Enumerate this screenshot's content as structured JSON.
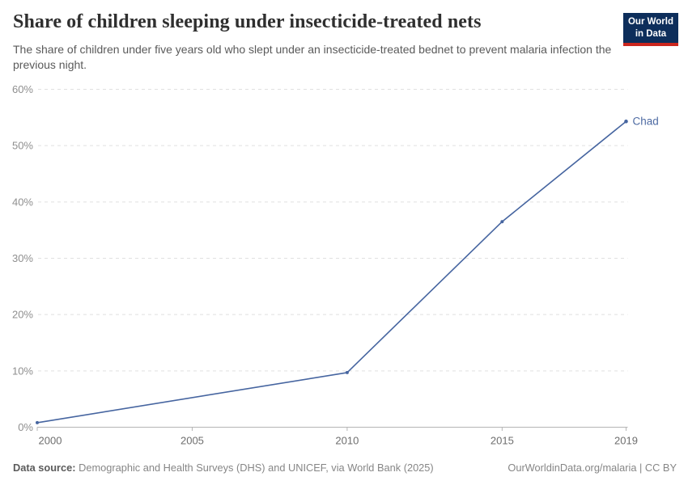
{
  "header": {
    "title": "Share of children sleeping under insecticide-treated nets",
    "subtitle": "The share of children under five years old who slept under an insecticide-treated bednet to prevent malaria infection the previous night.",
    "logo": {
      "line1": "Our World",
      "line2": "in Data"
    }
  },
  "chart_data": {
    "type": "line",
    "title": "Share of children sleeping under insecticide-treated nets",
    "series": [
      {
        "name": "Chad",
        "x": [
          2000,
          2010,
          2015,
          2019
        ],
        "values": [
          0.8,
          9.7,
          36.5,
          54.3
        ]
      }
    ],
    "end_label": "Chad",
    "x_ticks": [
      2000,
      2005,
      2010,
      2015,
      2019
    ],
    "y_ticks": [
      0,
      10,
      20,
      30,
      40,
      50,
      60
    ],
    "y_tick_suffix": "%",
    "xlim": [
      2000,
      2019
    ],
    "ylim": [
      0,
      60
    ],
    "grid": "horizontal-dashed",
    "legend_position": "end-of-line"
  },
  "footer": {
    "source_label": "Data source:",
    "source_text": " Demographic and Health Surveys (DHS) and UNICEF, via World Bank (2025)",
    "attribution": "OurWorldinData.org/malaria | CC BY"
  },
  "colors": {
    "line": "#4665a0",
    "marker": "#4665a0",
    "end_label": "#4e6ba3",
    "gridline": "#e0e0e0",
    "baseline": "#b5b5b5",
    "y_tick_label": "#8f8f8f",
    "x_tick_label": "#6e6e6e",
    "logo_bg": "#0d2e5b",
    "logo_bar": "#cb261e"
  }
}
